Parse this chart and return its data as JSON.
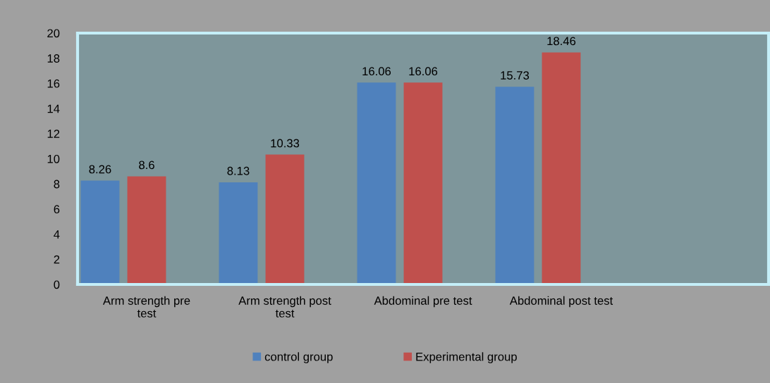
{
  "chart_data": {
    "type": "bar",
    "categories": [
      "Arm strength pre test",
      "Arm strength post test",
      "Abdominal pre test",
      "Abdominal post test",
      null
    ],
    "series": [
      {
        "name": "control group",
        "color": "#4f81bd",
        "values": [
          8.26,
          8.13,
          16.06,
          15.73,
          null
        ]
      },
      {
        "name": "Experimental group",
        "color": "#c0504d",
        "values": [
          8.6,
          10.33,
          16.06,
          18.46,
          null
        ]
      },
      {
        "values": [
          null,
          null,
          null,
          null,
          null
        ]
      }
    ],
    "ylim": [
      0,
      20
    ],
    "yticks": [
      0,
      2,
      4,
      6,
      8,
      10,
      12,
      14,
      16,
      18,
      20
    ],
    "grid": false,
    "legend": "bottom",
    "data_labels": true
  }
}
